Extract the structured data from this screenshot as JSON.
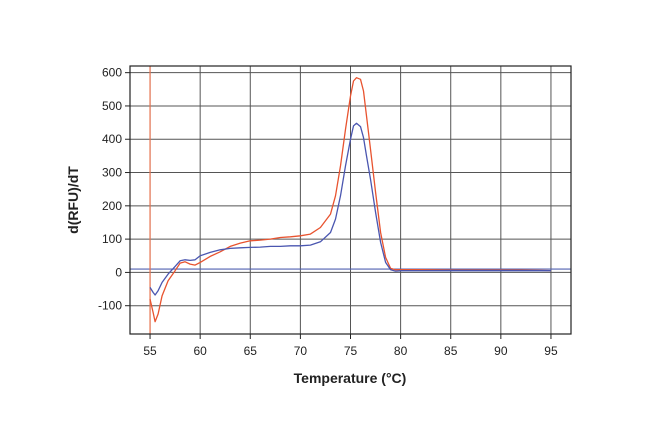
{
  "chart_data": {
    "type": "line",
    "title": "",
    "xlabel": "Temperature (°C)",
    "ylabel": "d(RFU)/dT",
    "xlim": [
      53,
      97
    ],
    "ylim": [
      -185,
      620
    ],
    "xticks": [
      55,
      60,
      65,
      70,
      75,
      80,
      85,
      90,
      95
    ],
    "yticks": [
      -100,
      0,
      100,
      200,
      300,
      400,
      500,
      600
    ],
    "grid": true,
    "legend": "none",
    "threshold": {
      "y": 10,
      "color": "#5060b0"
    },
    "marker_line": {
      "x": 55,
      "color": "#e8734f"
    },
    "series": [
      {
        "color": "#e8532f",
        "x": [
          55.0,
          55.3,
          55.5,
          55.8,
          56.2,
          56.8,
          57.5,
          58.0,
          58.5,
          59.0,
          59.5,
          60.0,
          61.0,
          62.0,
          63.0,
          64.0,
          65.0,
          66.0,
          67.0,
          68.0,
          69.0,
          70.0,
          71.0,
          72.0,
          73.0,
          73.5,
          74.0,
          74.5,
          75.0,
          75.3,
          75.6,
          76.0,
          76.3,
          76.6,
          77.0,
          77.5,
          78.0,
          78.5,
          79.0,
          79.5,
          80.0,
          82.0,
          85.0,
          88.0,
          90.0,
          92.0,
          94.0,
          95.0
        ],
        "y": [
          -80,
          -120,
          -148,
          -125,
          -70,
          -25,
          5,
          28,
          32,
          25,
          22,
          30,
          48,
          62,
          78,
          88,
          95,
          97,
          100,
          105,
          107,
          110,
          115,
          135,
          175,
          230,
          320,
          430,
          530,
          575,
          585,
          580,
          545,
          470,
          370,
          240,
          120,
          45,
          12,
          8,
          8,
          8,
          7,
          7,
          7,
          7,
          6,
          5
        ]
      },
      {
        "color": "#4a56b0",
        "x": [
          55.0,
          55.3,
          55.5,
          55.8,
          56.2,
          56.8,
          57.5,
          58.0,
          58.5,
          59.0,
          59.5,
          60.0,
          61.0,
          62.0,
          63.0,
          64.0,
          65.0,
          66.0,
          67.0,
          68.0,
          69.0,
          70.0,
          71.0,
          72.0,
          73.0,
          73.5,
          74.0,
          74.5,
          75.0,
          75.3,
          75.6,
          76.0,
          76.3,
          76.6,
          77.0,
          77.5,
          78.0,
          78.5,
          79.0,
          79.5,
          80.0,
          82.0,
          85.0,
          88.0,
          90.0,
          92.0,
          94.0,
          95.0
        ],
        "y": [
          -45,
          -60,
          -68,
          -55,
          -30,
          -5,
          18,
          35,
          38,
          36,
          38,
          50,
          60,
          68,
          72,
          74,
          75,
          76,
          78,
          78,
          80,
          80,
          82,
          92,
          120,
          160,
          230,
          320,
          400,
          440,
          448,
          438,
          405,
          350,
          280,
          180,
          90,
          30,
          8,
          4,
          5,
          5,
          5,
          5,
          5,
          5,
          5,
          5
        ]
      }
    ]
  }
}
